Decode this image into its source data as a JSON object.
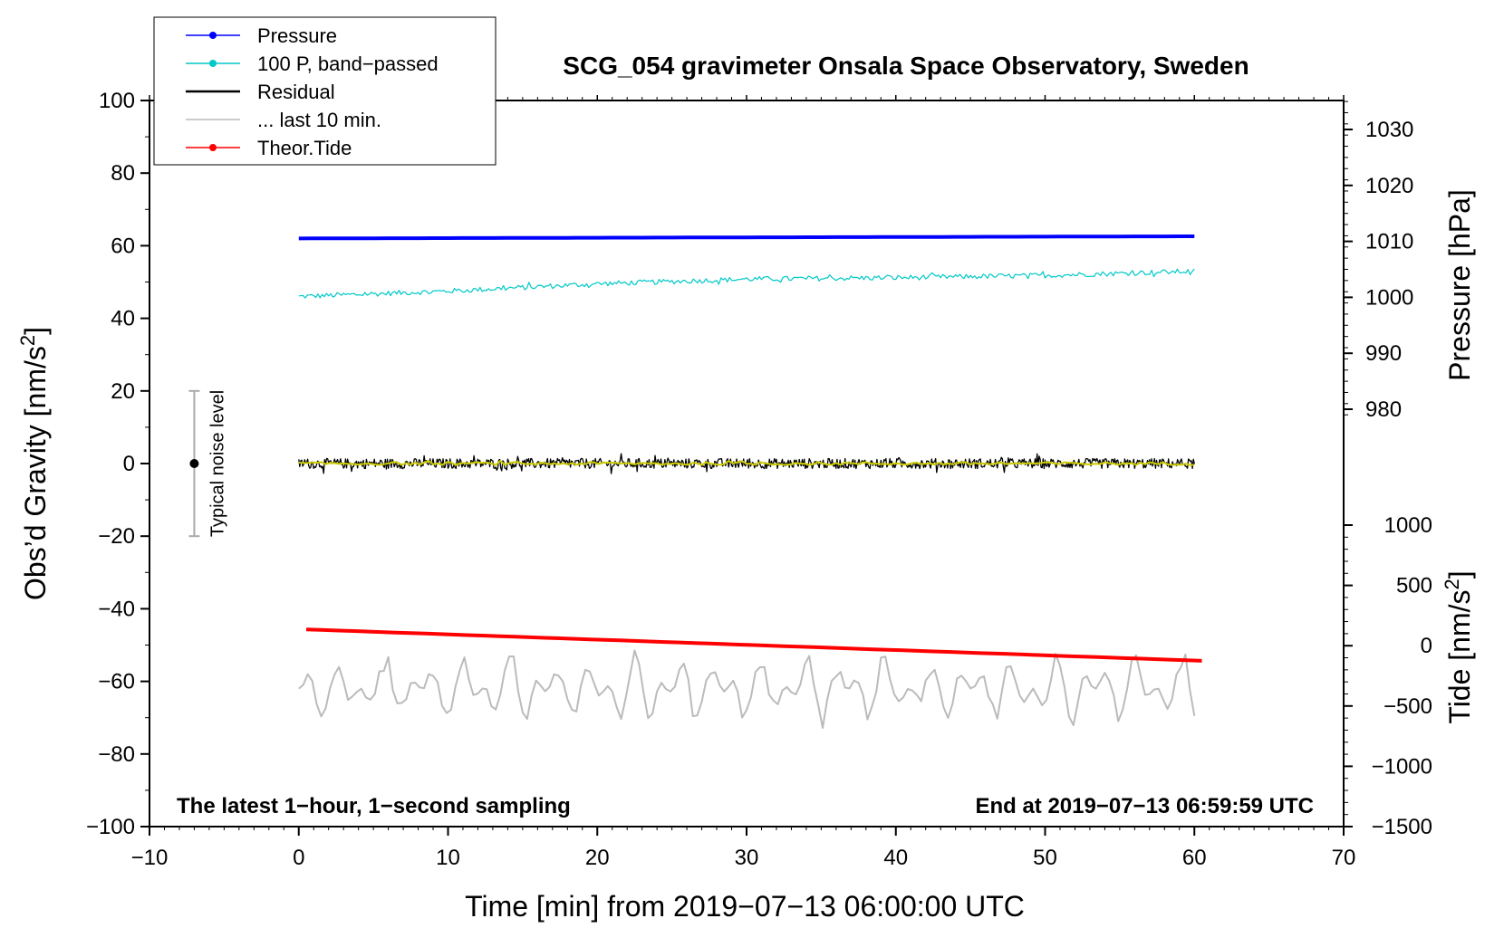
{
  "chart_data": {
    "type": "line",
    "title": "SCG_054 gravimeter Onsala Space Observatory, Sweden",
    "xlabel": "Time [min] from 2019−07−13 06:00:00 UTC",
    "ylabel_left": "Obs’d Gravity [nm/s",
    "ylabel_left_sup": "2",
    "ylabel_left_end": "]",
    "ylabel_pressure": "Pressure [hPa]",
    "ylabel_tide": "Tide [nm/s",
    "ylabel_tide_sup": "2",
    "ylabel_tide_end": "]",
    "xlim": [
      -10,
      70
    ],
    "ylim_left": [
      -100,
      100
    ],
    "pressure_lim": [
      975,
      1035
    ],
    "tide_lim": [
      -1500,
      1500
    ],
    "x_ticks": [
      {
        "v": -10,
        "t": "−10"
      },
      {
        "v": 0,
        "t": "0"
      },
      {
        "v": 10,
        "t": "10"
      },
      {
        "v": 20,
        "t": "20"
      },
      {
        "v": 30,
        "t": "30"
      },
      {
        "v": 40,
        "t": "40"
      },
      {
        "v": 50,
        "t": "50"
      },
      {
        "v": 60,
        "t": "60"
      },
      {
        "v": 70,
        "t": "70"
      }
    ],
    "y_ticks_left": [
      {
        "v": 100,
        "t": "100"
      },
      {
        "v": 80,
        "t": "80"
      },
      {
        "v": 60,
        "t": "60"
      },
      {
        "v": 40,
        "t": "40"
      },
      {
        "v": 20,
        "t": "20"
      },
      {
        "v": 0,
        "t": "0"
      },
      {
        "v": -20,
        "t": "−20"
      },
      {
        "v": -40,
        "t": "−40"
      },
      {
        "v": -60,
        "t": "−60"
      },
      {
        "v": -80,
        "t": "−80"
      },
      {
        "v": -100,
        "t": "−100"
      }
    ],
    "pressure_ticks": [
      {
        "v": 1030,
        "t": "1030"
      },
      {
        "v": 1020,
        "t": "1020"
      },
      {
        "v": 1010,
        "t": "1010"
      },
      {
        "v": 1000,
        "t": "1000"
      },
      {
        "v": 990,
        "t": "990"
      },
      {
        "v": 980,
        "t": "980"
      }
    ],
    "tide_ticks": [
      {
        "v": 1000,
        "t": "1000"
      },
      {
        "v": 500,
        "t": "500"
      },
      {
        "v": 0,
        "t": "0"
      },
      {
        "v": -500,
        "t": "−500"
      },
      {
        "v": -1000,
        "t": "−1000"
      },
      {
        "v": -1500,
        "t": "−1500"
      }
    ],
    "legend": [
      {
        "label": "Pressure",
        "color": "#0000ff",
        "marker": true
      },
      {
        "label": "100 P, band−passed",
        "color": "#00c8c8",
        "marker": true
      },
      {
        "label": "Residual",
        "color": "#000000",
        "marker": false
      },
      {
        "label": "... last 10 min.",
        "color": "#bbbbbb",
        "marker": false
      },
      {
        "label": "Theor.Tide",
        "color": "#ff0000",
        "marker": true
      }
    ],
    "series": [
      {
        "name": "Pressure",
        "axis": "left",
        "color": "#0000ff",
        "x": [
          0,
          60
        ],
        "values": [
          62.0,
          62.6
        ]
      },
      {
        "name": "100 P, band−passed",
        "axis": "left",
        "color": "#00c8c8",
        "x": [
          0,
          10,
          20,
          30,
          40,
          50,
          60
        ],
        "values": [
          46.0,
          47.5,
          49.5,
          50.8,
          51.2,
          51.8,
          53.0
        ],
        "noise": 0.7
      },
      {
        "name": "Residual",
        "axis": "left",
        "color": "#000000",
        "x": [
          0,
          60
        ],
        "values": [
          0,
          0
        ],
        "noise": 1.4
      },
      {
        "name": "Residual (smoothed)",
        "axis": "left",
        "color": "#cccc00",
        "x": [
          0,
          60
        ],
        "values": [
          0,
          0
        ],
        "noise": 0.4
      },
      {
        "name": "... last 10 min.",
        "axis": "left",
        "color": "#bbbbbb",
        "x": [
          0,
          60
        ],
        "values": [
          -62,
          -62
        ],
        "noise": 2.0
      },
      {
        "name": "Theor.Tide",
        "axis": "tide",
        "color": "#ff0000",
        "x": [
          0.5,
          60.5
        ],
        "values": [
          135,
          -125
        ]
      }
    ],
    "noise_bar": {
      "x": -7,
      "center": 0,
      "low": -20,
      "high": 20,
      "label": "Typical noise level"
    },
    "note_left": "The latest 1−hour, 1−second sampling",
    "note_right": "End at 2019−07−13 06:59:59 UTC"
  }
}
